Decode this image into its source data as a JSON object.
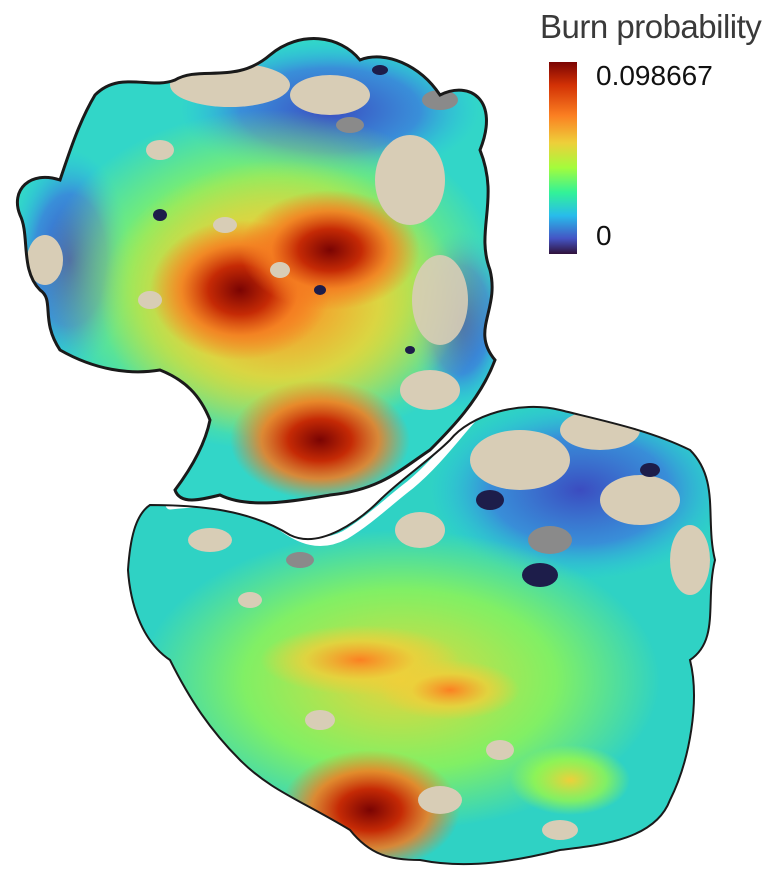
{
  "legend": {
    "title": "Burn probability",
    "max_label": "0.098667",
    "min_label": "0",
    "max_value": 0.098667,
    "min_value": 0,
    "colors": [
      "#30123b",
      "#4454c4",
      "#28bceb",
      "#32f298",
      "#a4fc3c",
      "#eecf3a",
      "#fb8022",
      "#d23105",
      "#7a0403"
    ]
  },
  "map": {
    "colors": {
      "outline": "#1a1a1a",
      "river": "#ffffff",
      "nonburnable_beige": "#d8cdb6",
      "nonburnable_gray": "#8a8a8a"
    }
  }
}
